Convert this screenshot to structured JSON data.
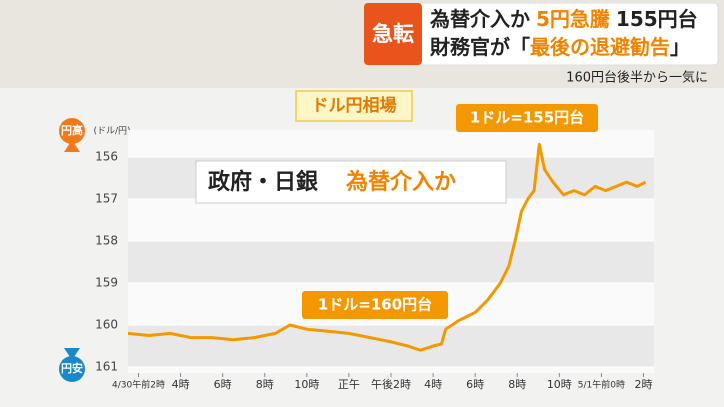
{
  "header": {
    "tag": "急転",
    "line1": [
      "為替介入か",
      "5円急騰",
      "155円台"
    ],
    "line2": [
      "財務官が「",
      "最後の退避勧告",
      "」"
    ],
    "caption": "160円台後半から一気に"
  },
  "chart_data": {
    "type": "line",
    "title": "ドル円相場",
    "ylabel": "(ドル/円)",
    "y_top_label": "円高",
    "y_bottom_label": "円安",
    "x": [
      1.5,
      2.5,
      3.5,
      4.5,
      5.5,
      6.5,
      7.5,
      8.5,
      9.2,
      10,
      11,
      12,
      13,
      14,
      14.8,
      15.4,
      16,
      16.4,
      16.6,
      17.2,
      18,
      18.6,
      19.2,
      19.6,
      19.9,
      20.2,
      20.5,
      20.8,
      21.05,
      21.3,
      21.7,
      22.2,
      22.7,
      23.2,
      23.7,
      24.2,
      24.7,
      25.2,
      25.7,
      26.1
    ],
    "series": [
      {
        "name": "ドル円",
        "color": "#f39800",
        "values": [
          160.2,
          160.25,
          160.2,
          160.3,
          160.3,
          160.35,
          160.3,
          160.2,
          160.0,
          160.1,
          160.15,
          160.2,
          160.3,
          160.4,
          160.5,
          160.6,
          160.5,
          160.45,
          160.1,
          159.9,
          159.7,
          159.4,
          159.0,
          158.6,
          158.0,
          157.3,
          157.0,
          156.8,
          155.7,
          156.3,
          156.6,
          156.9,
          156.8,
          156.9,
          156.7,
          156.8,
          156.7,
          156.6,
          156.7,
          156.6
        ]
      }
    ],
    "ylim": [
      161,
      155.5
    ],
    "yticks": [
      156,
      157,
      158,
      159,
      160,
      161
    ],
    "xlim": [
      1.5,
      26.5
    ],
    "xticks": [
      {
        "value": 2,
        "label": "4/30午前2時"
      },
      {
        "value": 4,
        "label": "4時"
      },
      {
        "value": 6,
        "label": "6時"
      },
      {
        "value": 8,
        "label": "8時"
      },
      {
        "value": 10,
        "label": "10時"
      },
      {
        "value": 12,
        "label": "正午"
      },
      {
        "value": 14,
        "label": "午後2時"
      },
      {
        "value": 16,
        "label": "4時"
      },
      {
        "value": 18,
        "label": "6時"
      },
      {
        "value": 20,
        "label": "8時"
      },
      {
        "value": 22,
        "label": "10時"
      },
      {
        "value": 24,
        "label": "5/1午前0時"
      },
      {
        "value": 26,
        "label": "2時"
      }
    ],
    "annotations": [
      "政府・日銀",
      "為替介入か",
      "1ドル=155円台",
      "1ドル=160円台"
    ],
    "grid": true
  }
}
